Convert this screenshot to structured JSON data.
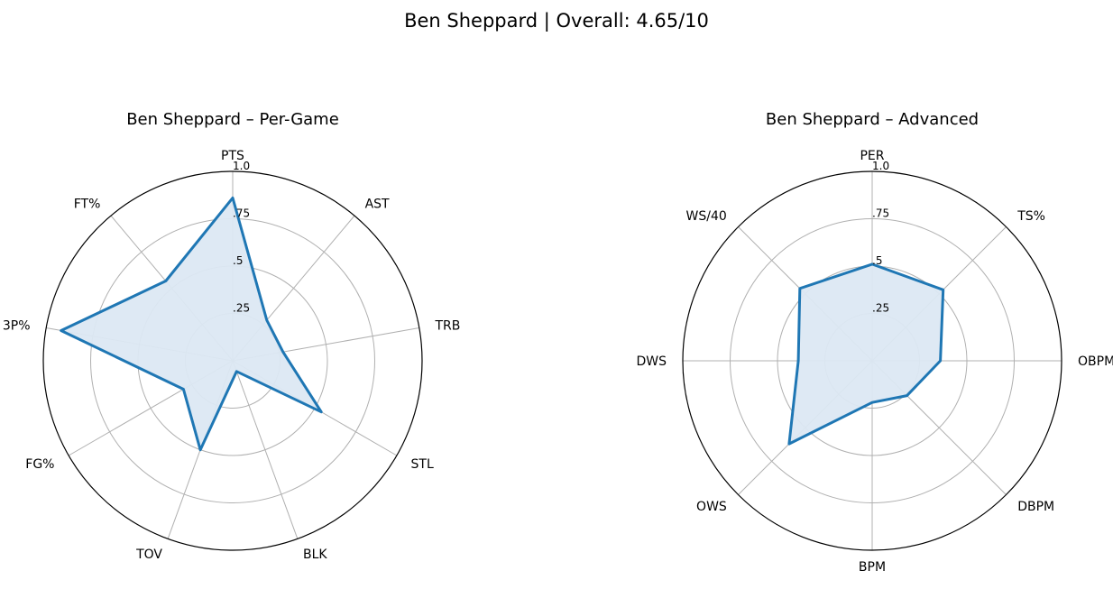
{
  "figure": {
    "title": "Ben Sheppard | Overall: 4.65/10"
  },
  "colors": {
    "series_line": "#1f77b4",
    "series_fill": "#dce8f3"
  },
  "chart_data": [
    {
      "type": "radar",
      "title": "Ben Sheppard – Per-Game",
      "categories": [
        "PTS",
        "AST",
        "TRB",
        "STL",
        "BLK",
        "TOV",
        "FG%",
        "3P%",
        "FT%"
      ],
      "rlim": [
        0,
        1
      ],
      "ticks": [
        0.25,
        0.5,
        0.75,
        1.0
      ],
      "tick_labels": [
        ".25",
        ".5",
        ".75",
        "1.0"
      ],
      "grid": true,
      "values": [
        0.86,
        0.28,
        0.27,
        0.54,
        0.06,
        0.5,
        0.3,
        0.92,
        0.55
      ]
    },
    {
      "type": "radar",
      "title": "Ben Sheppard – Advanced",
      "categories": [
        "PER",
        "TS%",
        "OBPM",
        "DBPM",
        "BPM",
        "OWS",
        "DWS",
        "WS/40"
      ],
      "rlim": [
        0,
        1
      ],
      "ticks": [
        0.25,
        0.5,
        0.75,
        1.0
      ],
      "tick_labels": [
        ".25",
        ".5",
        ".75",
        "1.0"
      ],
      "grid": true,
      "values": [
        0.51,
        0.53,
        0.36,
        0.26,
        0.22,
        0.62,
        0.39,
        0.54
      ]
    }
  ]
}
